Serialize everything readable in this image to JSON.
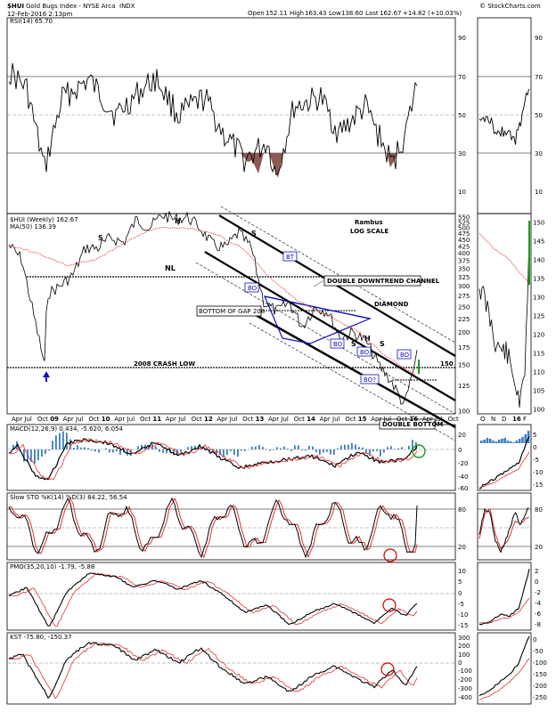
{
  "header": {
    "symbol": "$HUI",
    "name": "Gold Bugs Index - NYSE Arca",
    "exchange": "INDX",
    "date": "12-Feb-2016 2:13pm",
    "open_label": "Open",
    "open": "152.11",
    "high_label": "High",
    "high": "163.43",
    "low_label": "Low",
    "low": "138.60",
    "last_label": "Last",
    "last": "162.67",
    "change": "+14.82 (+10.03%)",
    "copyright": "© StockCharts.com"
  },
  "colors": {
    "price": "#000000",
    "ma": "#e03030",
    "macd_hist": "#3a7fc0",
    "rsi_fill": "#8b5a52",
    "annot_blue": "#1010c0",
    "annot_red": "#d00000",
    "green": "#1a9a1a"
  },
  "rsi": {
    "label": "RSI(14) 65.70",
    "ticks": [
      "90",
      "70",
      "50",
      "30",
      "10"
    ]
  },
  "price_panel": {
    "legend_symbol": "$HUI (Weekly) 162.67",
    "legend_ma": "MA(50) 136.39",
    "ticks": [
      "550",
      "525",
      "500",
      "475",
      "450",
      "425",
      "400",
      "375",
      "350",
      "325",
      "300",
      "275",
      "250",
      "225",
      "200",
      "175",
      "150",
      "125",
      "100"
    ],
    "small_ticks": [
      "150",
      "145",
      "140",
      "135",
      "130",
      "125",
      "120",
      "115",
      "110",
      "105",
      "100"
    ],
    "annotations": {
      "h1": "H",
      "h2": "H",
      "s1": "S",
      "s2": "S",
      "nl": "NL",
      "bt": "BT",
      "bo1": "BO",
      "bo2": "BO",
      "bo3": "BO",
      "bo4": "BO?",
      "bo5": "BO",
      "channel": "DOUBLE DOWNTREND CHANNEL",
      "diamond": "DIAMOND",
      "gap": "BOTTOM OF GAP 208",
      "crash": "2008 CRASH LOW",
      "crash_val": "150",
      "rambus": "Rambus",
      "log": "LOG SCALE",
      "s3": "S",
      "s4": "S",
      "h3": "H",
      "double_bottom": "DOUBLE BOTTOM"
    }
  },
  "x_axis": {
    "labels": [
      "Apr",
      "Jul",
      "Oct",
      "09",
      "Apr",
      "Jul",
      "Oct",
      "10",
      "Apr",
      "Jul",
      "Oct",
      "11",
      "Apr",
      "Jul",
      "Oct",
      "12",
      "Apr",
      "Jul",
      "Oct",
      "13",
      "Apr",
      "Jul",
      "Oct",
      "14",
      "Apr",
      "Jul",
      "Oct",
      "15",
      "Apr",
      "Jul",
      "Oct",
      "16",
      "Apr",
      "Jul",
      "Oct"
    ],
    "small_labels": [
      "O",
      "N",
      "D",
      "16",
      "F"
    ]
  },
  "macd": {
    "label": "MACD(12,26,9) 0.434, -5.620, 6.054",
    "ticks": [
      "20",
      "0",
      "-20",
      "-40",
      "-60"
    ],
    "small_ticks": [
      "5",
      "0",
      "-5",
      "-10",
      "-15"
    ]
  },
  "sto": {
    "label": "Slow STO %K(14) %D(3) 84.22, 56.54",
    "ticks": [
      "80",
      "20"
    ]
  },
  "pmo": {
    "label": "PMO(35,20,10) -1.79, -5.88",
    "ticks": [
      "10",
      "5",
      "0",
      "-5",
      "-10",
      "-15"
    ],
    "small_ticks": [
      "2",
      "0",
      "-2",
      "-4",
      "-6",
      "-8"
    ]
  },
  "kst": {
    "label": "KST -75.80, -150.37",
    "ticks": [
      "300",
      "200",
      "100",
      "0",
      "-100",
      "-200",
      "-300",
      "-400"
    ],
    "small_ticks": [
      "0",
      "-50",
      "-100",
      "-150",
      "-200",
      "-250"
    ]
  },
  "chart_data": {
    "type": "line",
    "title": "$HUI Gold Bugs Index - NYSE Arca",
    "xlabel": "",
    "ylabel": "",
    "log_scale": true,
    "series": [
      {
        "name": "$HUI (Weekly)",
        "x": [
          "2008-04",
          "2008-07",
          "2008-10",
          "2009-01",
          "2009-04",
          "2009-07",
          "2009-10",
          "2010-01",
          "2010-04",
          "2010-07",
          "2010-10",
          "2011-01",
          "2011-04",
          "2011-07",
          "2011-10",
          "2012-01",
          "2012-04",
          "2012-07",
          "2012-10",
          "2013-01",
          "2013-04",
          "2013-07",
          "2013-10",
          "2014-01",
          "2014-04",
          "2014-07",
          "2014-10",
          "2015-01",
          "2015-04",
          "2015-07",
          "2015-10",
          "2016-01",
          "2016-02"
        ],
        "values": [
          430,
          380,
          160,
          280,
          300,
          330,
          420,
          420,
          460,
          440,
          540,
          500,
          560,
          540,
          550,
          500,
          430,
          420,
          480,
          420,
          260,
          240,
          260,
          210,
          250,
          240,
          190,
          200,
          185,
          150,
          130,
          105,
          162.67
        ]
      },
      {
        "name": "MA(50)",
        "x": [
          "2008-04",
          "2008-10",
          "2009-04",
          "2010-01",
          "2010-10",
          "2011-07",
          "2012-04",
          "2012-10",
          "2013-04",
          "2013-10",
          "2014-04",
          "2014-10",
          "2015-04",
          "2015-10",
          "2016-02"
        ],
        "values": [
          430,
          400,
          360,
          380,
          440,
          500,
          500,
          480,
          420,
          320,
          260,
          230,
          200,
          160,
          136.39
        ]
      }
    ],
    "ylim": [
      100,
      550
    ]
  }
}
